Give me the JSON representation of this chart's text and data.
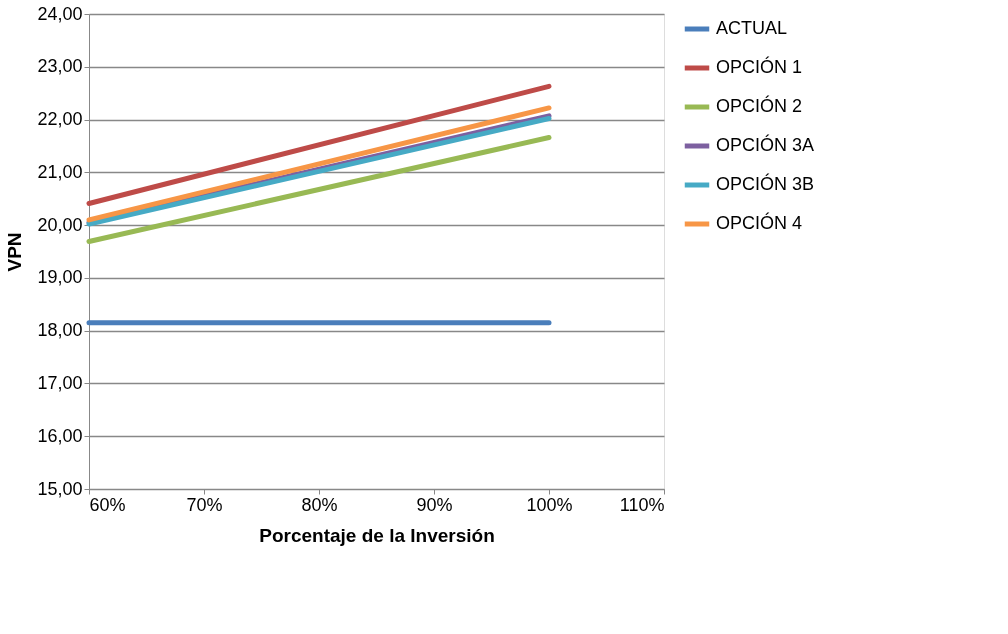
{
  "chart_data": {
    "type": "line",
    "xlabel": "Porcentaje de la Inversión",
    "ylabel": "VPN",
    "x": [
      0.6,
      1.0
    ],
    "xlim": [
      0.6,
      1.1
    ],
    "xticks": [
      {
        "value": 0.6,
        "label": "60%"
      },
      {
        "value": 0.7,
        "label": "70%"
      },
      {
        "value": 0.8,
        "label": "80%"
      },
      {
        "value": 0.9,
        "label": "90%"
      },
      {
        "value": 1.0,
        "label": "100%"
      },
      {
        "value": 1.1,
        "label": "110%"
      }
    ],
    "ylim": [
      15,
      24
    ],
    "yticks": [
      {
        "value": 15,
        "label": "15,00"
      },
      {
        "value": 16,
        "label": "16,00"
      },
      {
        "value": 17,
        "label": "17,00"
      },
      {
        "value": 18,
        "label": "18,00"
      },
      {
        "value": 19,
        "label": "19,00"
      },
      {
        "value": 20,
        "label": "20,00"
      },
      {
        "value": 21,
        "label": "21,00"
      },
      {
        "value": 22,
        "label": "22,00"
      },
      {
        "value": 23,
        "label": "23,00"
      },
      {
        "value": 24,
        "label": "24,00"
      }
    ],
    "grid": "y",
    "legend": "right",
    "marker": "none",
    "series": [
      {
        "name": "ACTUAL",
        "color": "#4a7ebb",
        "values": [
          18.15,
          18.15
        ]
      },
      {
        "name": "OPCIÓN 1",
        "color": "#be4b48",
        "values": [
          20.41,
          22.63
        ]
      },
      {
        "name": "OPCIÓN 2",
        "color": "#98b954",
        "values": [
          19.69,
          21.66
        ]
      },
      {
        "name": "OPCIÓN 3A",
        "color": "#7d60a0",
        "values": [
          20.05,
          22.07
        ]
      },
      {
        "name": "OPCIÓN 3B",
        "color": "#46aac5",
        "values": [
          20.02,
          22.02
        ]
      },
      {
        "name": "OPCIÓN 4",
        "color": "#f79646",
        "values": [
          20.1,
          22.22
        ]
      }
    ]
  }
}
